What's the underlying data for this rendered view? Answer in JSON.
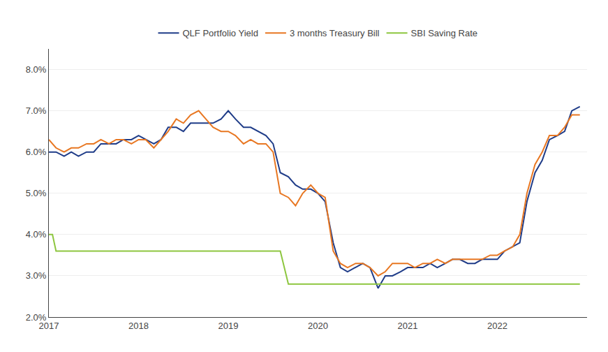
{
  "chart_data": {
    "type": "line",
    "grid": true,
    "legend": "top",
    "xlim": [
      2017.0,
      2023.0
    ],
    "xticks": [
      2017,
      2018,
      2019,
      2020,
      2021,
      2022
    ],
    "ylim": [
      0.02,
      0.085
    ],
    "yticks": [
      {
        "value": 0.02,
        "label": "2.0%"
      },
      {
        "value": 0.03,
        "label": "3.0%"
      },
      {
        "value": 0.04,
        "label": "4.0%"
      },
      {
        "value": 0.05,
        "label": "5.0%"
      },
      {
        "value": 0.06,
        "label": "6.0%"
      },
      {
        "value": 0.07,
        "label": "7.0%"
      },
      {
        "value": 0.08,
        "label": "8.0%"
      }
    ],
    "series": [
      {
        "name": "QLF Portfolio Yield",
        "color": "#1f3c88",
        "x": [
          2017.0,
          2017.08,
          2017.17,
          2017.25,
          2017.33,
          2017.42,
          2017.5,
          2017.58,
          2017.67,
          2017.75,
          2017.83,
          2017.92,
          2018.0,
          2018.08,
          2018.17,
          2018.25,
          2018.33,
          2018.42,
          2018.5,
          2018.58,
          2018.67,
          2018.75,
          2018.83,
          2018.92,
          2019.0,
          2019.08,
          2019.17,
          2019.25,
          2019.33,
          2019.42,
          2019.5,
          2019.58,
          2019.67,
          2019.75,
          2019.83,
          2019.92,
          2020.0,
          2020.08,
          2020.17,
          2020.25,
          2020.33,
          2020.42,
          2020.5,
          2020.58,
          2020.67,
          2020.75,
          2020.83,
          2020.92,
          2021.0,
          2021.08,
          2021.17,
          2021.25,
          2021.33,
          2021.42,
          2021.5,
          2021.58,
          2021.67,
          2021.75,
          2021.83,
          2021.92,
          2022.0,
          2022.08,
          2022.17,
          2022.25,
          2022.33,
          2022.42,
          2022.5,
          2022.58,
          2022.67,
          2022.75,
          2022.83,
          2022.92
        ],
        "values": [
          0.06,
          0.06,
          0.059,
          0.06,
          0.059,
          0.06,
          0.06,
          0.062,
          0.062,
          0.062,
          0.063,
          0.063,
          0.064,
          0.063,
          0.062,
          0.063,
          0.066,
          0.066,
          0.065,
          0.067,
          0.067,
          0.067,
          0.067,
          0.068,
          0.07,
          0.068,
          0.066,
          0.066,
          0.065,
          0.064,
          0.062,
          0.055,
          0.054,
          0.052,
          0.051,
          0.051,
          0.05,
          0.048,
          0.038,
          0.032,
          0.031,
          0.032,
          0.033,
          0.032,
          0.027,
          0.03,
          0.03,
          0.031,
          0.032,
          0.032,
          0.032,
          0.033,
          0.032,
          0.033,
          0.034,
          0.034,
          0.033,
          0.033,
          0.034,
          0.034,
          0.034,
          0.036,
          0.037,
          0.038,
          0.048,
          0.055,
          0.058,
          0.063,
          0.064,
          0.065,
          0.07,
          0.071
        ]
      },
      {
        "name": "3 months Treasury Bill",
        "color": "#e87722",
        "x": [
          2017.0,
          2017.08,
          2017.17,
          2017.25,
          2017.33,
          2017.42,
          2017.5,
          2017.58,
          2017.67,
          2017.75,
          2017.83,
          2017.92,
          2018.0,
          2018.08,
          2018.17,
          2018.25,
          2018.33,
          2018.42,
          2018.5,
          2018.58,
          2018.67,
          2018.75,
          2018.83,
          2018.92,
          2019.0,
          2019.08,
          2019.17,
          2019.25,
          2019.33,
          2019.42,
          2019.5,
          2019.58,
          2019.67,
          2019.75,
          2019.83,
          2019.92,
          2020.0,
          2020.08,
          2020.17,
          2020.25,
          2020.33,
          2020.42,
          2020.5,
          2020.58,
          2020.67,
          2020.75,
          2020.83,
          2020.92,
          2021.0,
          2021.08,
          2021.17,
          2021.25,
          2021.33,
          2021.42,
          2021.5,
          2021.58,
          2021.67,
          2021.75,
          2021.83,
          2021.92,
          2022.0,
          2022.08,
          2022.17,
          2022.25,
          2022.33,
          2022.42,
          2022.5,
          2022.58,
          2022.67,
          2022.75,
          2022.83,
          2022.92
        ],
        "values": [
          0.063,
          0.061,
          0.06,
          0.061,
          0.061,
          0.062,
          0.062,
          0.063,
          0.062,
          0.063,
          0.063,
          0.062,
          0.063,
          0.063,
          0.061,
          0.063,
          0.065,
          0.068,
          0.067,
          0.069,
          0.07,
          0.068,
          0.066,
          0.065,
          0.065,
          0.064,
          0.062,
          0.063,
          0.062,
          0.062,
          0.06,
          0.05,
          0.049,
          0.047,
          0.05,
          0.052,
          0.05,
          0.049,
          0.036,
          0.033,
          0.032,
          0.033,
          0.033,
          0.032,
          0.03,
          0.031,
          0.033,
          0.033,
          0.033,
          0.032,
          0.033,
          0.033,
          0.034,
          0.033,
          0.034,
          0.034,
          0.034,
          0.034,
          0.034,
          0.035,
          0.035,
          0.036,
          0.037,
          0.04,
          0.05,
          0.057,
          0.06,
          0.064,
          0.064,
          0.066,
          0.069,
          0.069
        ]
      },
      {
        "name": "SBI Saving Rate",
        "color": "#8dc63f",
        "x": [
          2017.0,
          2017.04,
          2017.08,
          2017.92,
          2019.58,
          2019.67,
          2020.0,
          2022.92
        ],
        "values": [
          0.04,
          0.04,
          0.036,
          0.036,
          0.036,
          0.028,
          0.028,
          0.028
        ]
      }
    ]
  }
}
